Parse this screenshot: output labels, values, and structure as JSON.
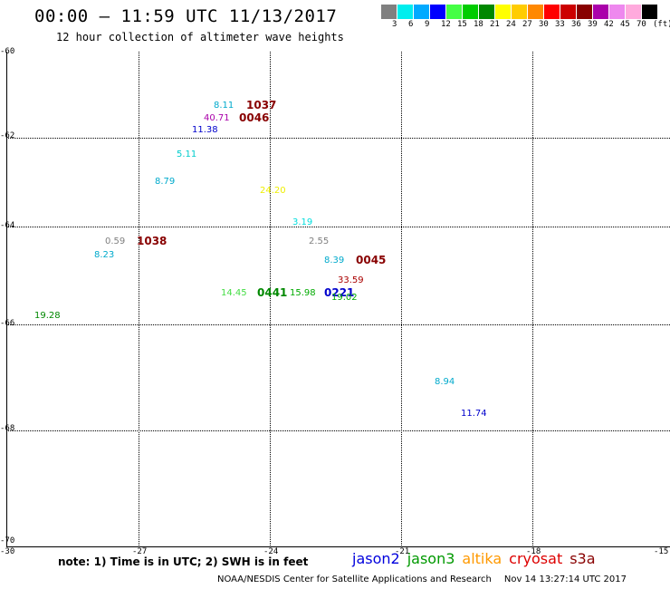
{
  "header": {
    "title": "00:00 – 11:59 UTC 11/13/2017",
    "subtitle": "12 hour collection of altimeter wave heights"
  },
  "legend": {
    "colors": [
      "#808080",
      "#00eeee",
      "#00aaff",
      "#0000ff",
      "#44ff44",
      "#00cc00",
      "#008800",
      "#ffff00",
      "#ffcc00",
      "#ff8800",
      "#ff0000",
      "#cc0000",
      "#880000",
      "#aa00aa",
      "#ee88ee",
      "#ffaadd",
      "#000000"
    ],
    "labels": [
      "3",
      "6",
      "9",
      "12",
      "15",
      "18",
      "21",
      "24",
      "27",
      "30",
      "33",
      "36",
      "39",
      "42",
      "45",
      "70",
      "(ft)"
    ]
  },
  "axes": {
    "y_labels": [
      "-60",
      "-62",
      "-64",
      "-66",
      "-68",
      "-70"
    ],
    "x_labels": [
      "-30",
      "-27",
      "-24",
      "-21",
      "-18",
      "-15"
    ]
  },
  "observations": [
    {
      "text": "8.11",
      "color": "#00aacc"
    },
    {
      "text": "1037",
      "color": "#880000",
      "time": true
    },
    {
      "text": "40.71",
      "color": "#aa00aa"
    },
    {
      "text": "0046",
      "color": "#880000",
      "time": true
    },
    {
      "text": "11.38",
      "color": "#0000cc"
    },
    {
      "text": "5.11",
      "color": "#00cccc"
    },
    {
      "text": "8.79",
      "color": "#00aacc"
    },
    {
      "text": "24.20",
      "color": "#eeee00"
    },
    {
      "text": "3.19",
      "color": "#00dddd"
    },
    {
      "text": "0.59",
      "color": "#808080"
    },
    {
      "text": "1038",
      "color": "#880000",
      "time": true
    },
    {
      "text": "2.55",
      "color": "#808080"
    },
    {
      "text": "8.23",
      "color": "#00aacc"
    },
    {
      "text": "8.39",
      "color": "#00aacc"
    },
    {
      "text": "0045",
      "color": "#880000",
      "time": true
    },
    {
      "text": "33.59",
      "color": "#aa0000"
    },
    {
      "text": "14.45",
      "color": "#44dd44"
    },
    {
      "text": "0441",
      "color": "#008800",
      "time": true
    },
    {
      "text": "15.98",
      "color": "#00aa00"
    },
    {
      "text": "0221",
      "color": "#0000cc",
      "time": true
    },
    {
      "text": "19.02",
      "color": "#00aa00"
    },
    {
      "text": "19.28",
      "color": "#008800"
    },
    {
      "text": "8.94",
      "color": "#00aacc"
    },
    {
      "text": "11.74",
      "color": "#0000cc"
    }
  ],
  "footer": {
    "note": "note: 1) Time is in UTC; 2) SWH is in feet",
    "satellites": [
      {
        "name": "jason2",
        "color": "#0000dd"
      },
      {
        "name": "jason3",
        "color": "#009900"
      },
      {
        "name": "altika",
        "color": "#ff9900"
      },
      {
        "name": "cryosat",
        "color": "#dd0000"
      },
      {
        "name": "s3a",
        "color": "#880000"
      }
    ],
    "credit": "NOAA/NESDIS Center for Satellite Applications and Research",
    "timestamp": "Nov 14 13:27:14 UTC 2017"
  }
}
